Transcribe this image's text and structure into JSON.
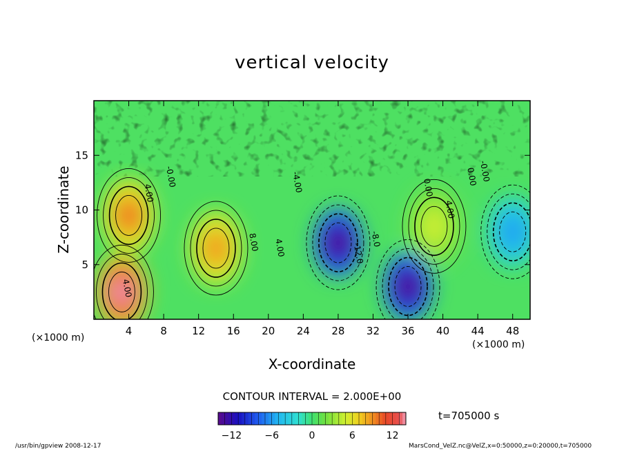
{
  "chart_data": {
    "type": "heatmap",
    "title": "vertical velocity",
    "xlabel": "X-coordinate",
    "ylabel": "Z-coordinate",
    "x_unit_left": "(×1000 m)",
    "x_unit_right": "(×1000 m)",
    "xlim": [
      0,
      50
    ],
    "ylim": [
      0,
      20
    ],
    "xticks": [
      4,
      8,
      12,
      16,
      20,
      24,
      28,
      32,
      36,
      40,
      44,
      48
    ],
    "yticks": [
      5,
      10,
      15
    ],
    "contour_interval_text": "CONTOUR INTERVAL = 2.000E+00",
    "time_text": "t=705000 s",
    "colorbar": {
      "range": [
        -14,
        14
      ],
      "ticks": [
        -12,
        -6,
        0,
        6,
        12
      ]
    },
    "contour_labels": [
      "4.00",
      "-0.00",
      "8.00",
      "4.00",
      "-4.00",
      "-12.0",
      "-8.0",
      "0.00",
      "4.00",
      "0.00",
      "-0.00",
      "4.00"
    ],
    "features": [
      {
        "x": 4,
        "z": 9.5,
        "value": 10
      },
      {
        "x": 3.2,
        "z": 2.5,
        "value": 14
      },
      {
        "x": 14,
        "z": 6.5,
        "value": 9
      },
      {
        "x": 28,
        "z": 7,
        "value": -14
      },
      {
        "x": 36,
        "z": 3,
        "value": -14
      },
      {
        "x": 39,
        "z": 8.5,
        "value": 5
      },
      {
        "x": 48,
        "z": 8,
        "value": -6
      }
    ]
  },
  "footer": {
    "left": "/usr/bin/gpview  2008-12-17",
    "right": "MarsCond_VelZ.nc@VelZ,x=0:50000,z=0:20000,t=705000"
  }
}
